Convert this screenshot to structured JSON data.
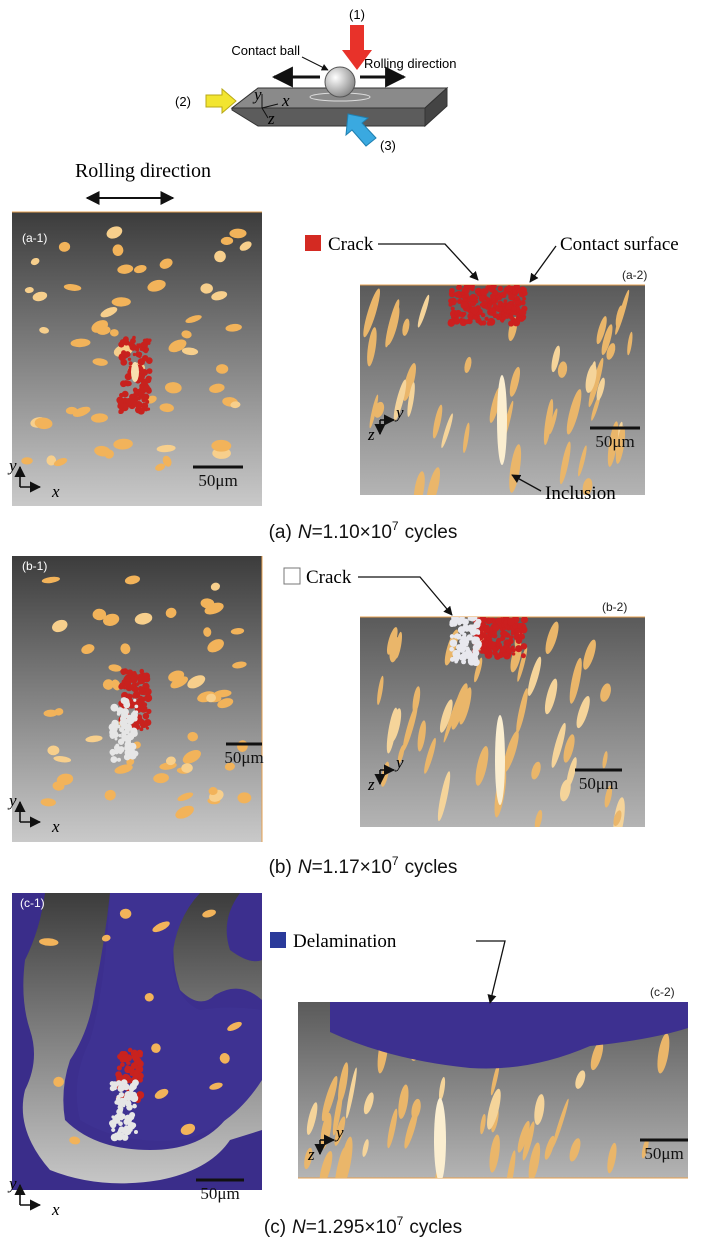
{
  "schematic": {
    "load_label": "(1)",
    "ball_label": "Contact ball",
    "rolling_label": "Rolling direction",
    "view_2_label": "(2)",
    "view_3_label": "(3)",
    "axes": {
      "x": "x",
      "y": "y",
      "z": "z"
    }
  },
  "rolling_direction": "Rolling direction",
  "panels": [
    {
      "caption": {
        "label": "(a)",
        "variable": "N",
        "value": "=1.10×10",
        "exponent": "7",
        "unit": "cycles"
      },
      "top_view": {
        "label": "(a-1)",
        "axes": {
          "y": "y",
          "x": "x"
        },
        "scale_bar": "50μm"
      },
      "side_view": {
        "label": "(a-2)",
        "axes": {
          "y": "y",
          "z": "z"
        },
        "scale_bar": "50μm",
        "legend": "Crack",
        "surface_label": "Contact surface",
        "inclusion_label": "Inclusion"
      }
    },
    {
      "caption": {
        "label": "(b)",
        "variable": "N",
        "value": "=1.17×10",
        "exponent": "7",
        "unit": "cycles"
      },
      "top_view": {
        "label": "(b-1)",
        "axes": {
          "y": "y",
          "x": "x"
        },
        "scale_bar": "50μm"
      },
      "side_view": {
        "label": "(b-2)",
        "axes": {
          "y": "y",
          "z": "z"
        },
        "scale_bar": "50μm",
        "legend": "Crack"
      }
    },
    {
      "caption": {
        "label": "(c)",
        "variable": "N",
        "value": "=1.295×10",
        "exponent": "7",
        "unit": "cycles"
      },
      "top_view": {
        "label": "(c-1)",
        "axes": {
          "y": "y",
          "x": "x"
        },
        "scale_bar": "50μm"
      },
      "side_view": {
        "label": "(c-2)",
        "axes": {
          "y": "y",
          "z": "z"
        },
        "scale_bar": "50μm",
        "legend": "Delamination"
      }
    }
  ]
}
